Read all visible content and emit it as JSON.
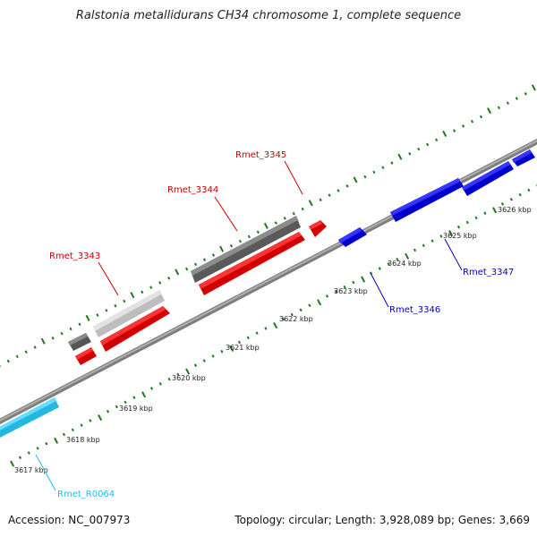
{
  "title": "Ralstonia metallidurans CH34 chromosome 1, complete sequence",
  "accession_text": "Accession: NC_007973",
  "summary_text": "Topology: circular; Length: 3,928,089 bp; Genes: 3,669",
  "colors": {
    "backbone": "#8c8c8c",
    "ticks": "#1e7a1e",
    "forward_gene": "#ff0000",
    "reverse_gene": "#0000e6",
    "rna_gene": "#33ccf2",
    "dark_feature": "#6a6a6a",
    "light_feature": "#cccccc",
    "label_forward": "#cc0000",
    "label_reverse": "#0000bb",
    "label_rna": "#22bbee"
  },
  "kbp_ticks": [
    {
      "label": "3617 kbp"
    },
    {
      "label": "3618 kbp"
    },
    {
      "label": "3619 kbp"
    },
    {
      "label": "3620 kbp"
    },
    {
      "label": "3621 kbp"
    },
    {
      "label": "3622 kbp"
    },
    {
      "label": "3623 kbp"
    },
    {
      "label": "3624 kbp"
    },
    {
      "label": "3625 kbp"
    },
    {
      "label": "3626 kbp"
    }
  ],
  "gene_labels": {
    "rmet_3343": "Rmet_3343",
    "rmet_3344": "Rmet_3344",
    "rmet_3345": "Rmet_3345",
    "rmet_3346": "Rmet_3346",
    "rmet_3347": "Rmet_3347",
    "rmet_r0064": "Rmet_R0064"
  }
}
